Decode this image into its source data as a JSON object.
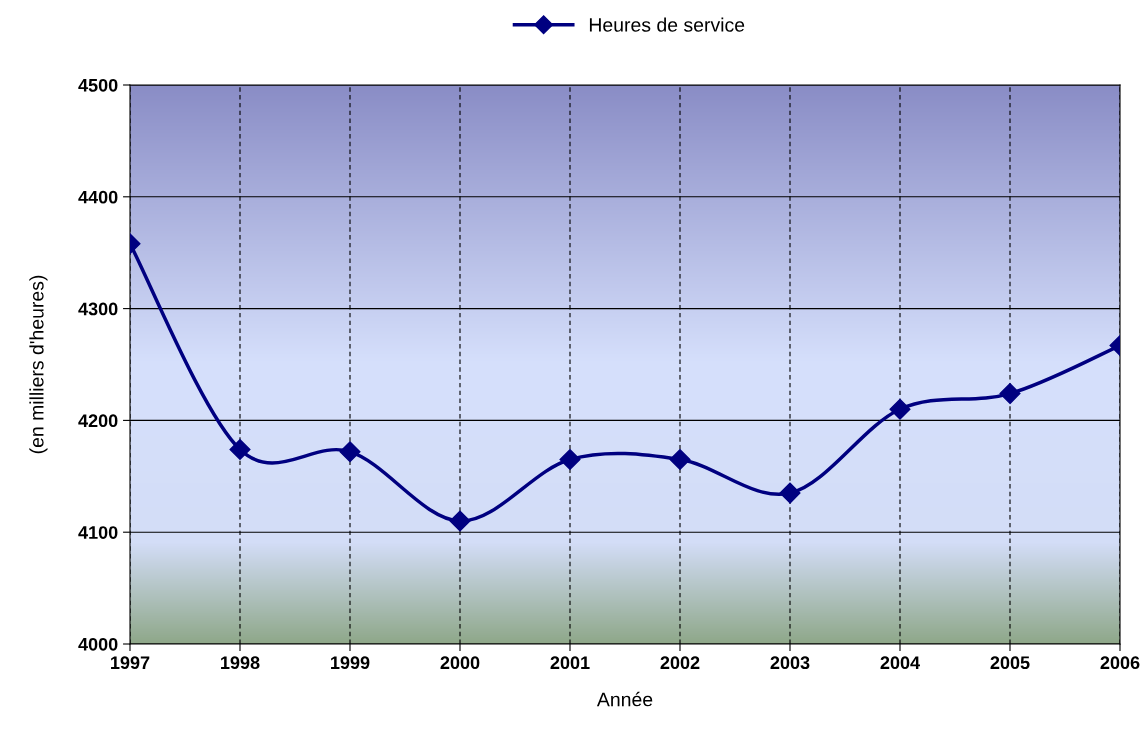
{
  "chart_data": {
    "type": "line",
    "xlabel": "Année",
    "ylabel": "(en milliers d'heures)",
    "x": [
      1997,
      1998,
      1999,
      2000,
      2001,
      2002,
      2003,
      2004,
      2005,
      2006
    ],
    "series": [
      {
        "name": "Heures de service",
        "color": "#000080",
        "values": [
          4358,
          4174,
          4172,
          4110,
          4165,
          4165,
          4135,
          4210,
          4224,
          4267
        ]
      }
    ],
    "xlim": [
      1997,
      2006
    ],
    "xticks": [
      1997,
      1998,
      1999,
      2000,
      2001,
      2002,
      2003,
      2004,
      2005,
      2006
    ],
    "ylim": [
      4000,
      4500
    ],
    "yticks": [
      4000,
      4100,
      4200,
      4300,
      4400,
      4500
    ],
    "grid": true,
    "legend": "top",
    "marker": "diamond",
    "line_style": "solid"
  }
}
